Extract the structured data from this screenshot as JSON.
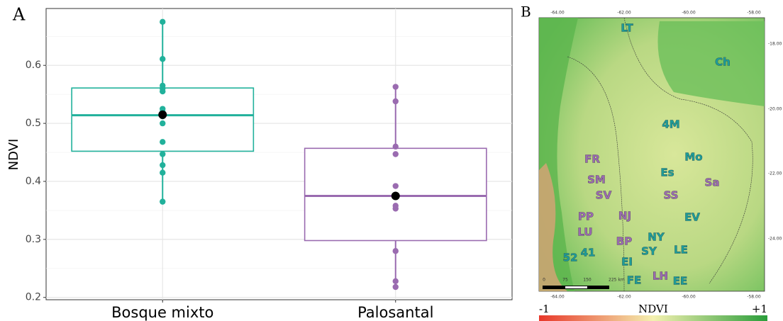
{
  "panel_labels": [
    "A",
    "B"
  ],
  "chart_data": {
    "type": "box",
    "y_label": "NDVI",
    "categories": [
      "Bosque mixto",
      "Palosantal"
    ],
    "series": [
      {
        "color": "#21b19b",
        "min": 0.365,
        "q1": 0.452,
        "median": 0.514,
        "q3": 0.561,
        "max": 0.675,
        "mean": 0.515,
        "points": [
          0.675,
          0.611,
          0.565,
          0.56,
          0.555,
          0.525,
          0.52,
          0.512,
          0.5,
          0.468,
          0.447,
          0.428,
          0.415,
          0.365
        ]
      },
      {
        "color": "#9a6bb0",
        "min": 0.218,
        "q1": 0.298,
        "median": 0.375,
        "q3": 0.457,
        "max": 0.563,
        "mean": 0.375,
        "points": [
          0.563,
          0.538,
          0.46,
          0.447,
          0.392,
          0.377,
          0.358,
          0.353,
          0.28,
          0.228,
          0.218
        ]
      }
    ],
    "mean_color": "#000000",
    "ylim": [
      0.196,
      0.698
    ],
    "yticks": [
      0.2,
      0.3,
      0.4,
      0.5,
      0.6
    ],
    "minor_yticks": [
      0.25,
      0.35,
      0.45,
      0.55,
      0.65
    ],
    "grid": true
  },
  "map": {
    "lon_ticks": [
      "-64.00",
      "-62.00",
      "-60.00",
      "-58.00"
    ],
    "lat_ticks": [
      "-18.00",
      "-20.00",
      "-22.00",
      "-24.00"
    ],
    "scale_labels": [
      "0",
      "75",
      "150",
      "225 km"
    ],
    "sites": [
      {
        "label": "LT",
        "color": "#1e9c99"
      },
      {
        "label": "Ch",
        "color": "#1e9c99"
      },
      {
        "label": "4M",
        "color": "#1e9c99"
      },
      {
        "label": "FR",
        "color": "#9a6bb0"
      },
      {
        "label": "Mo",
        "color": "#1e9c99"
      },
      {
        "label": "Es",
        "color": "#1e9c99"
      },
      {
        "label": "SM",
        "color": "#9a6bb0"
      },
      {
        "label": "Sa",
        "color": "#9a6bb0"
      },
      {
        "label": "SV",
        "color": "#9a6bb0"
      },
      {
        "label": "SS",
        "color": "#9a6bb0"
      },
      {
        "label": "PP",
        "color": "#9a6bb0"
      },
      {
        "label": "NJ",
        "color": "#9a6bb0"
      },
      {
        "label": "EV",
        "color": "#1e9c99"
      },
      {
        "label": "LU",
        "color": "#9a6bb0"
      },
      {
        "label": "NY",
        "color": "#1e9c99"
      },
      {
        "label": "BP",
        "color": "#9a6bb0"
      },
      {
        "label": "52",
        "color": "#1e9c99"
      },
      {
        "label": "41",
        "color": "#1e9c99"
      },
      {
        "label": "SY",
        "color": "#1e9c99"
      },
      {
        "label": "LE",
        "color": "#1e9c99"
      },
      {
        "label": "EI",
        "color": "#1e9c99"
      },
      {
        "label": "LH",
        "color": "#9a6bb0"
      },
      {
        "label": "FE",
        "color": "#1e9c99"
      },
      {
        "label": "EE",
        "color": "#1e9c99"
      }
    ],
    "legend": {
      "min_label": "-1",
      "title": "NDVI",
      "max_label": "+1"
    }
  }
}
